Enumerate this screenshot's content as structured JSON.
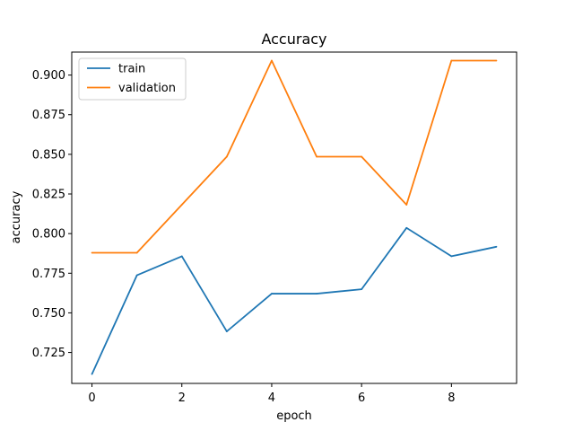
{
  "chart_data": {
    "type": "line",
    "title": "Accuracy",
    "xlabel": "epoch",
    "ylabel": "accuracy",
    "x": [
      0,
      1,
      2,
      3,
      4,
      5,
      6,
      7,
      8,
      9
    ],
    "xlim": [
      -0.45,
      9.45
    ],
    "ylim": [
      0.7055,
      0.9145
    ],
    "xticks": [
      0,
      2,
      4,
      6,
      8
    ],
    "xtick_labels": [
      "0",
      "2",
      "4",
      "6",
      "8"
    ],
    "yticks": [
      0.725,
      0.75,
      0.775,
      0.8,
      0.825,
      0.85,
      0.875,
      0.9
    ],
    "ytick_labels": [
      "0.725",
      "0.750",
      "0.775",
      "0.800",
      "0.825",
      "0.850",
      "0.875",
      "0.900"
    ],
    "grid": false,
    "legend_position": "top-left",
    "series": [
      {
        "name": "train",
        "color": "#1f77b4",
        "values": [
          0.7114,
          0.7737,
          0.7857,
          0.7383,
          0.7621,
          0.7621,
          0.7649,
          0.8036,
          0.7857,
          0.7917
        ]
      },
      {
        "name": "validation",
        "color": "#ff7f0e",
        "values": [
          0.7879,
          0.7879,
          0.8182,
          0.8485,
          0.9091,
          0.8485,
          0.8485,
          0.8182,
          0.9091,
          0.9091
        ]
      }
    ]
  }
}
